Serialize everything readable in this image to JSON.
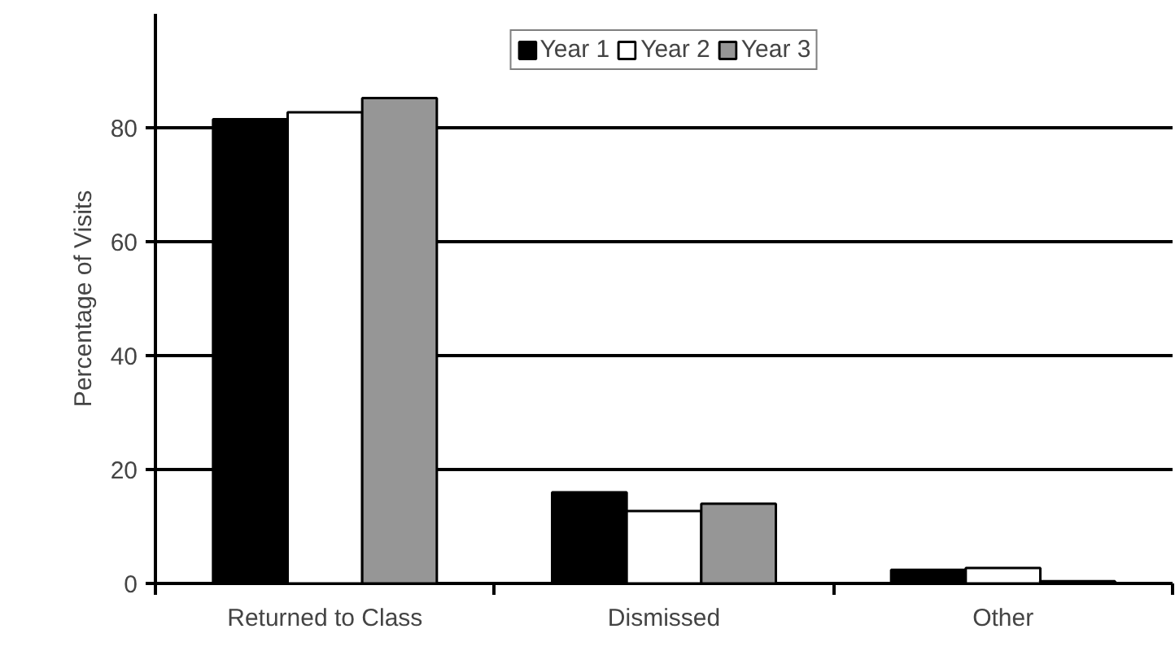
{
  "chart_data": {
    "type": "bar",
    "ylabel": "Percentage of Visits",
    "categories": [
      "Returned to Class",
      "Dismissed",
      "Other"
    ],
    "series": [
      {
        "name": "Year 1",
        "color": "#000000",
        "values": [
          81.5,
          16,
          2.4
        ]
      },
      {
        "name": "Year 2",
        "color": "#ffffff",
        "values": [
          82.7,
          12.7,
          2.7
        ]
      },
      {
        "name": "Year 3",
        "color": "#969696",
        "values": [
          85.2,
          14,
          0.4
        ]
      }
    ],
    "ylim": [
      0,
      100
    ],
    "yticks": [
      0,
      20,
      40,
      60,
      80
    ],
    "grid": "y",
    "legend": "top"
  }
}
